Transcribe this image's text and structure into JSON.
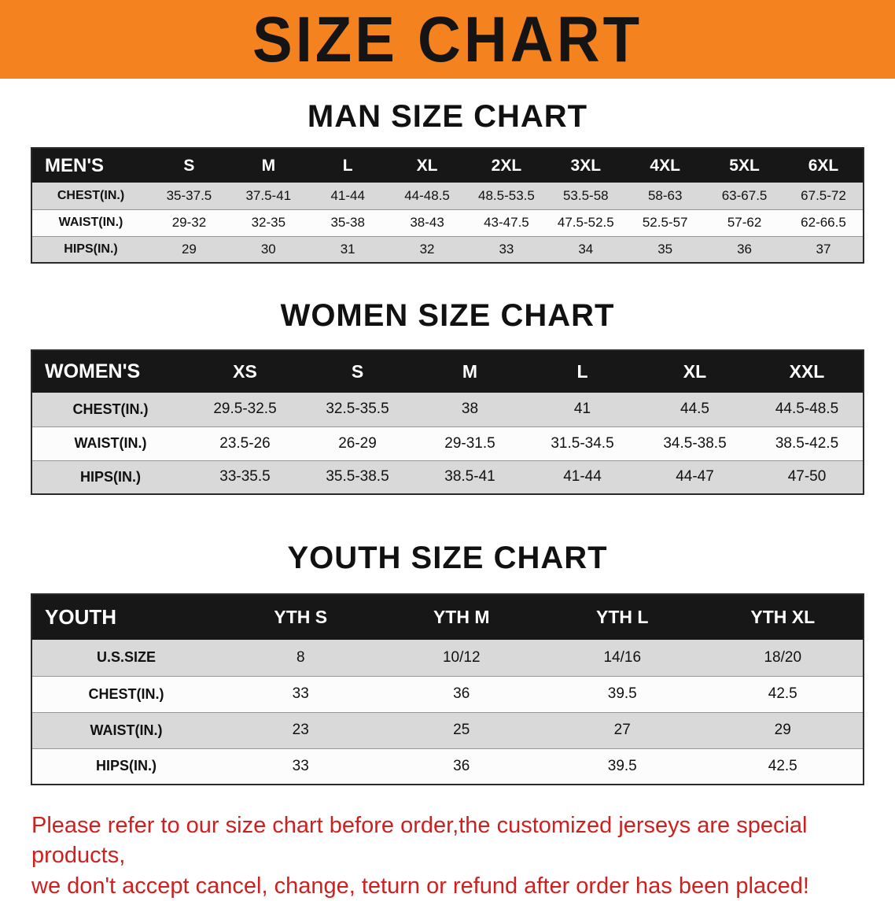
{
  "banner": {
    "title": "SIZE CHART"
  },
  "colors": {
    "banner_bg": "#F4821F",
    "table_header_bg": "#171717",
    "row_stripe": "#D9D9D9",
    "disclaimer_text": "#D01F1F"
  },
  "sections": [
    {
      "heading": "MAN SIZE CHART",
      "table": {
        "header": [
          "MEN'S",
          "S",
          "M",
          "L",
          "XL",
          "2XL",
          "3XL",
          "4XL",
          "5XL",
          "6XL"
        ],
        "rows": [
          [
            "CHEST(IN.)",
            "35-37.5",
            "37.5-41",
            "41-44",
            "44-48.5",
            "48.5-53.5",
            "53.5-58",
            "58-63",
            "63-67.5",
            "67.5-72"
          ],
          [
            "WAIST(IN.)",
            "29-32",
            "32-35",
            "35-38",
            "38-43",
            "43-47.5",
            "47.5-52.5",
            "52.5-57",
            "57-62",
            "62-66.5"
          ],
          [
            "HIPS(IN.)",
            "29",
            "30",
            "31",
            "32",
            "33",
            "34",
            "35",
            "36",
            "37"
          ]
        ]
      }
    },
    {
      "heading": "WOMEN SIZE CHART",
      "table": {
        "header": [
          "WOMEN'S",
          "XS",
          "S",
          "M",
          "L",
          "XL",
          "XXL"
        ],
        "rows": [
          [
            "CHEST(IN.)",
            "29.5-32.5",
            "32.5-35.5",
            "38",
            "41",
            "44.5",
            "44.5-48.5"
          ],
          [
            "WAIST(IN.)",
            "23.5-26",
            "26-29",
            "29-31.5",
            "31.5-34.5",
            "34.5-38.5",
            "38.5-42.5"
          ],
          [
            "HIPS(IN.)",
            "33-35.5",
            "35.5-38.5",
            "38.5-41",
            "41-44",
            "44-47",
            "47-50"
          ]
        ]
      }
    },
    {
      "heading": "YOUTH SIZE CHART",
      "table": {
        "header": [
          "YOUTH",
          "YTH S",
          "YTH M",
          "YTH L",
          "YTH XL"
        ],
        "rows": [
          [
            "U.S.SIZE",
            "8",
            "10/12",
            "14/16",
            "18/20"
          ],
          [
            "CHEST(IN.)",
            "33",
            "36",
            "39.5",
            "42.5"
          ],
          [
            "WAIST(IN.)",
            "23",
            "25",
            "27",
            "29"
          ],
          [
            "HIPS(IN.)",
            "33",
            "36",
            "39.5",
            "42.5"
          ]
        ]
      }
    }
  ],
  "footer": {
    "line1": "Please refer to our size chart before order,the customized jerseys are special products,",
    "line2": "we don't accept cancel, change, teturn or refund after order has been placed!"
  }
}
